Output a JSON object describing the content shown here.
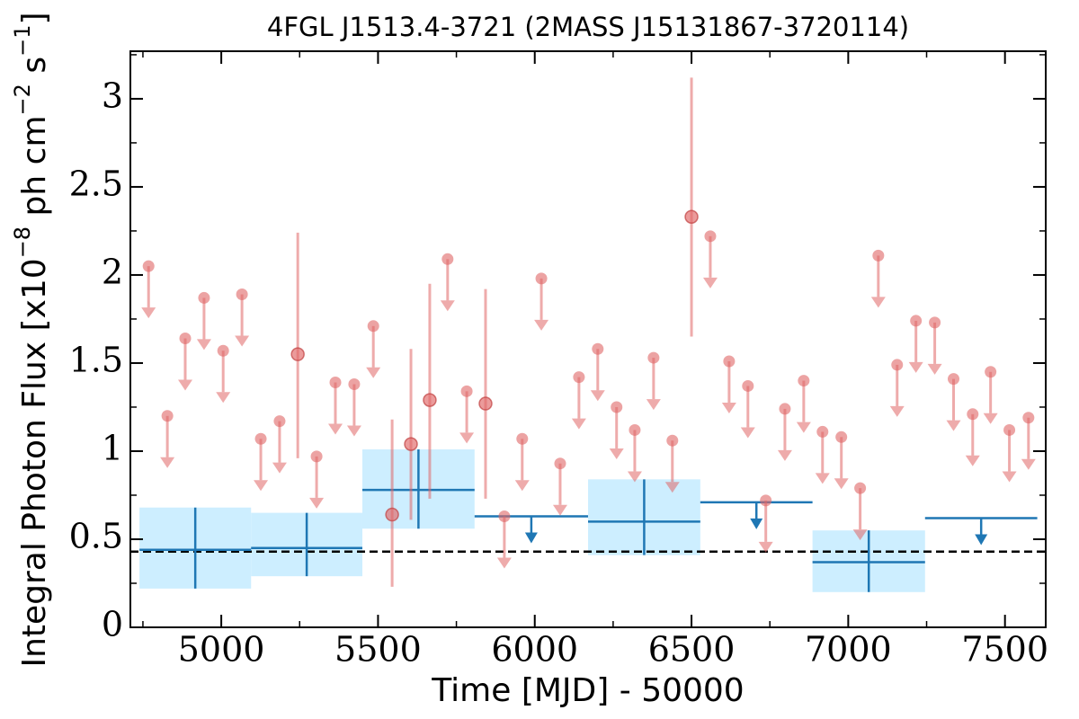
{
  "chart_data": {
    "type": "errorbar",
    "title": "4FGL J1513.4-3721 (2MASS J15131867-3720114)",
    "x_label": "Time [MJD] - 50000",
    "y_label_parts": [
      "Integral Photon Flux [x10",
      "−8",
      " ph cm",
      "−2",
      " s",
      "−1",
      "]"
    ],
    "xlim": [
      4710,
      7630
    ],
    "ylim": [
      0,
      3.27
    ],
    "xticks": [
      5000,
      5500,
      6000,
      6500,
      7000,
      7500
    ],
    "yticks": [
      0,
      0.5,
      1,
      1.5,
      2,
      2.5,
      3
    ],
    "xminor": [
      4750,
      5250,
      5750,
      6250,
      6750,
      7250
    ],
    "yminor": [
      0.25,
      0.75,
      1.25,
      1.75,
      2.25,
      2.75,
      3.25
    ],
    "baseline": 0.43,
    "series": [
      {
        "color": "#e06666",
        "x": [
          4768,
          4828,
          4885,
          4945,
          5006,
          5066,
          5126,
          5186,
          5244,
          5304,
          5364,
          5424,
          5485,
          5545,
          5605,
          5665,
          5722,
          5783,
          5843,
          5903,
          5960,
          6021,
          6081,
          6141,
          6201,
          6261,
          6319,
          6379,
          6439,
          6500,
          6560,
          6620,
          6680,
          6737,
          6798,
          6858,
          6918,
          6978,
          7038,
          7096,
          7156,
          7216,
          7276,
          7336,
          7397,
          7454,
          7514,
          7575
        ],
        "values": [
          2.05,
          1.2,
          1.64,
          1.87,
          1.57,
          1.89,
          1.07,
          1.17,
          1.55,
          0.97,
          1.39,
          1.38,
          1.71,
          0.64,
          1.04,
          1.29,
          2.09,
          1.34,
          1.27,
          0.63,
          1.07,
          1.98,
          0.93,
          1.42,
          1.58,
          1.25,
          1.12,
          1.53,
          1.06,
          2.33,
          2.22,
          1.51,
          1.37,
          0.72,
          1.24,
          1.4,
          1.11,
          1.08,
          0.79,
          2.11,
          1.49,
          1.74,
          1.73,
          1.41,
          1.21,
          1.45,
          1.12,
          1.19
        ],
        "lower": [
          null,
          null,
          null,
          null,
          null,
          null,
          null,
          null,
          0.96,
          null,
          null,
          null,
          null,
          0.23,
          0.61,
          0.73,
          null,
          null,
          0.73,
          null,
          null,
          null,
          null,
          null,
          null,
          null,
          null,
          null,
          null,
          1.65,
          null,
          null,
          null,
          null,
          null,
          null,
          null,
          null,
          null,
          null,
          null,
          null,
          null,
          null,
          null,
          null,
          null,
          null
        ],
        "upper": [
          null,
          null,
          null,
          null,
          null,
          null,
          null,
          null,
          2.24,
          null,
          null,
          null,
          null,
          1.18,
          1.58,
          1.95,
          null,
          null,
          1.92,
          null,
          null,
          null,
          null,
          null,
          null,
          null,
          null,
          null,
          null,
          3.12,
          null,
          null,
          null,
          null,
          null,
          null,
          null,
          null,
          null,
          null,
          null,
          null,
          null,
          null,
          null,
          null,
          null,
          null
        ],
        "upper_limit": [
          true,
          true,
          true,
          true,
          true,
          true,
          true,
          true,
          false,
          true,
          true,
          true,
          true,
          false,
          false,
          false,
          true,
          true,
          false,
          true,
          true,
          true,
          true,
          true,
          true,
          true,
          true,
          true,
          true,
          false,
          true,
          true,
          true,
          true,
          true,
          true,
          true,
          true,
          true,
          true,
          true,
          true,
          true,
          true,
          true,
          true,
          true,
          true
        ]
      },
      {
        "color": "#1f77b4",
        "band_color": "#cdeeff",
        "x_start": [
          4739,
          5095,
          5450,
          5808,
          6170,
          6528,
          6886,
          7245
        ],
        "x_end": [
          5095,
          5450,
          5808,
          6170,
          6528,
          6886,
          7245,
          7603
        ],
        "values": [
          0.44,
          0.45,
          0.78,
          0.63,
          0.6,
          0.71,
          0.37,
          0.62
        ],
        "lower": [
          0.22,
          0.29,
          0.56,
          null,
          0.41,
          null,
          0.2,
          null
        ],
        "upper": [
          0.68,
          0.65,
          1.01,
          null,
          0.84,
          null,
          0.55,
          null
        ],
        "upper_limit": [
          false,
          false,
          false,
          true,
          false,
          true,
          false,
          true
        ]
      }
    ]
  }
}
